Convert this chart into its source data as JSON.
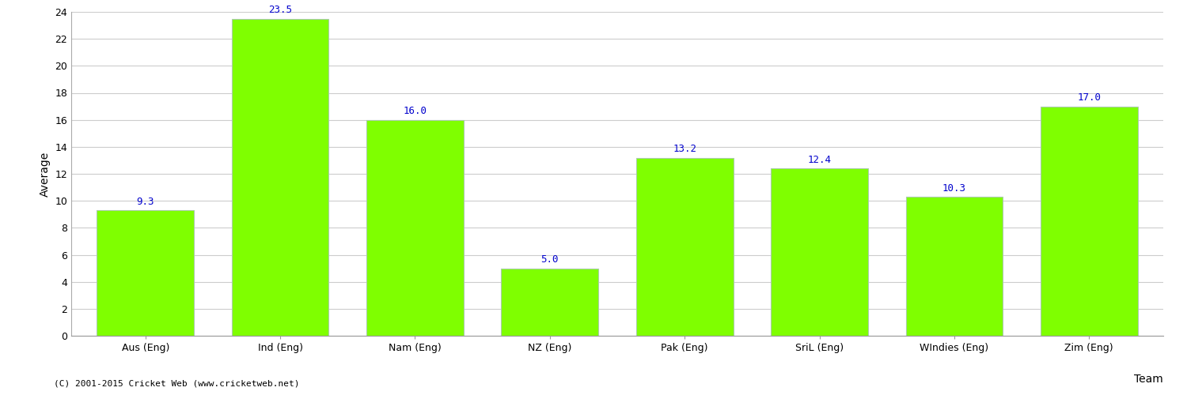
{
  "categories": [
    "Aus (Eng)",
    "Ind (Eng)",
    "Nam (Eng)",
    "NZ (Eng)",
    "Pak (Eng)",
    "SriL (Eng)",
    "WIndies (Eng)",
    "Zim (Eng)"
  ],
  "values": [
    9.3,
    23.5,
    16.0,
    5.0,
    13.2,
    12.4,
    10.3,
    17.0
  ],
  "bar_color": "#7fff00",
  "bar_edge_color": "#aaccaa",
  "value_color": "#0000cc",
  "xlabel": "Team",
  "ylabel": "Average",
  "ylim": [
    0,
    24
  ],
  "yticks": [
    0,
    2,
    4,
    6,
    8,
    10,
    12,
    14,
    16,
    18,
    20,
    22,
    24
  ],
  "grid_color": "#cccccc",
  "background_color": "#ffffff",
  "footer_text": "(C) 2001-2015 Cricket Web (www.cricketweb.net)",
  "value_fontsize": 9,
  "label_fontsize": 9,
  "axis_label_fontsize": 10,
  "bar_width": 0.72
}
